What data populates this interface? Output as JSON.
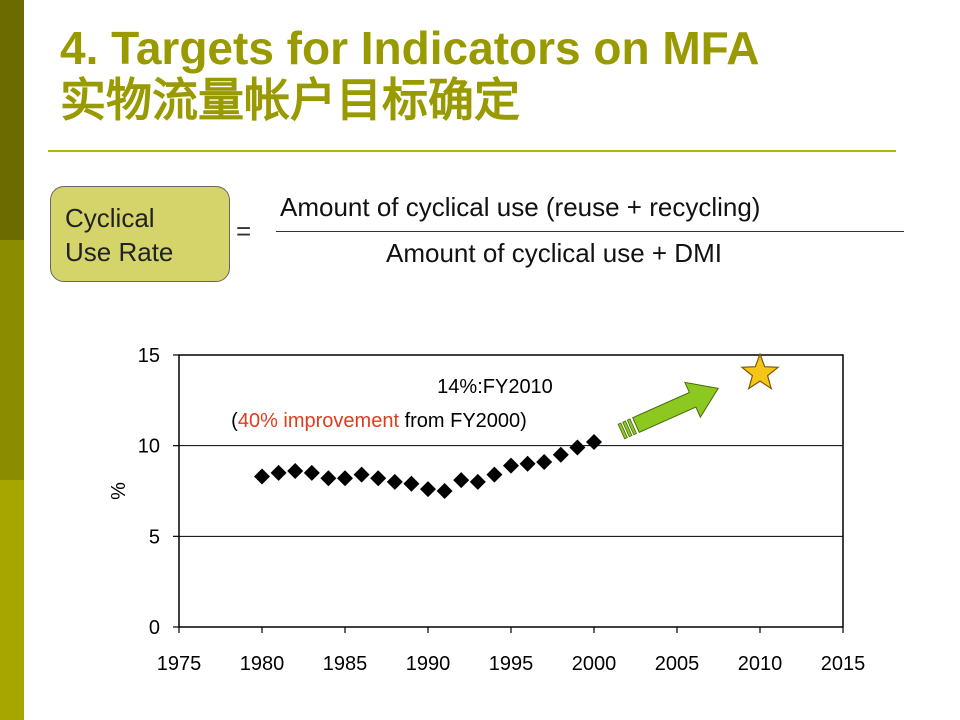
{
  "title": {
    "line1": "4. Targets for Indicators on MFA",
    "line2": "实物流量帐户目标确定"
  },
  "definition": {
    "label_line1": "Cyclical",
    "label_line2": "Use Rate",
    "equals": "=",
    "numerator": "Amount of cyclical use (reuse + recycling)",
    "denominator": "Amount of cyclical use + DMI"
  },
  "colors": {
    "title": "#999900",
    "box": "#d4d46a",
    "annotation_highlight": "#e03c1c",
    "arrow": "#8cc820",
    "star": "#f5c518",
    "marker": "#000000"
  },
  "chart_data": {
    "type": "scatter",
    "ylabel": "%",
    "xlim": [
      1975,
      2015
    ],
    "ylim": [
      0,
      15
    ],
    "x_ticks": [
      "1975",
      "1980",
      "1985",
      "1990",
      "1995",
      "2000",
      "2005",
      "2010",
      "2015"
    ],
    "y_ticks": [
      "0",
      "5",
      "10",
      "15"
    ],
    "grid_y": [
      5,
      10
    ],
    "series": [
      {
        "x": [
          1980,
          1981,
          1982,
          1983,
          1984,
          1985,
          1986,
          1987,
          1988,
          1989,
          1990,
          1991,
          1992,
          1993,
          1994,
          1995,
          1996,
          1997,
          1998,
          1999,
          2000
        ],
        "y": [
          8.3,
          8.5,
          8.6,
          8.5,
          8.2,
          8.2,
          8.4,
          8.2,
          8.0,
          7.9,
          7.6,
          7.5,
          8.1,
          8.0,
          8.4,
          8.9,
          9.0,
          9.1,
          9.5,
          9.9,
          10.2
        ]
      }
    ],
    "target": {
      "x": 2010,
      "y": 14,
      "marker": "star"
    },
    "annotation": {
      "line1": "14%:FY2010",
      "open": "(",
      "highlight": "40% improvement",
      "rest": " from FY2000)"
    }
  }
}
